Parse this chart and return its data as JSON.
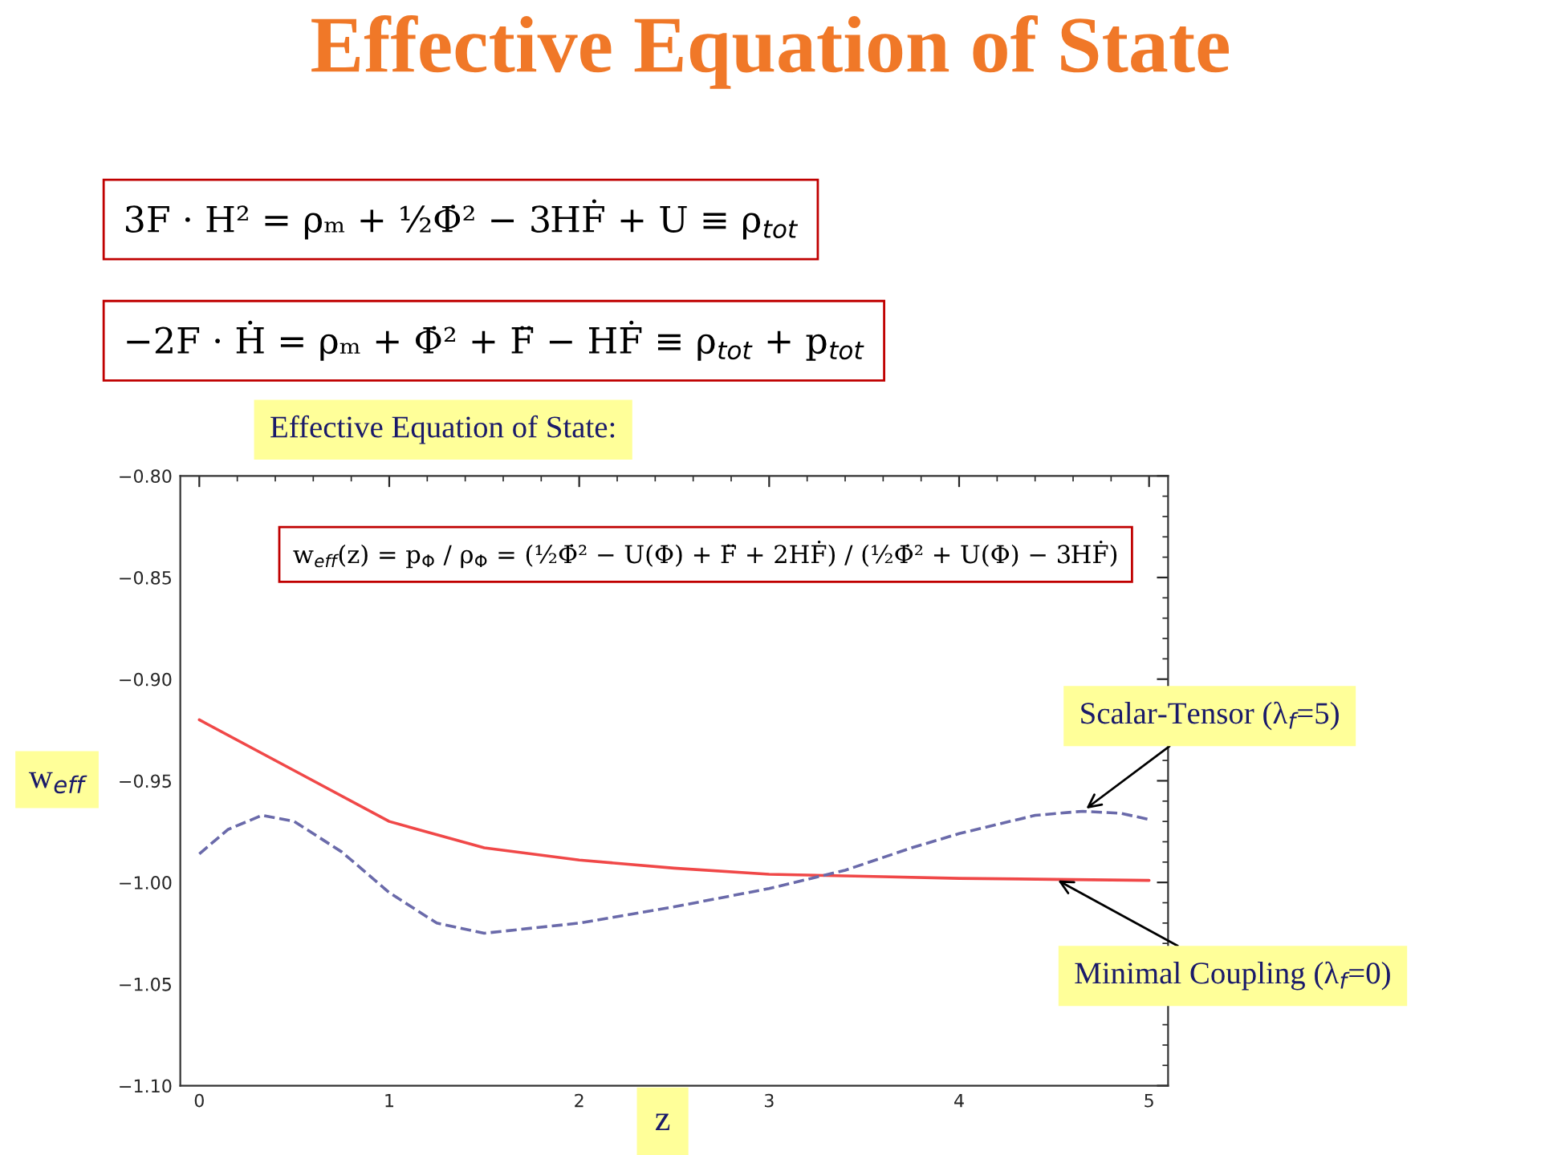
{
  "chart_data": {
    "type": "line",
    "title": "Effective Equation of State",
    "xlabel": "z",
    "ylabel": "w$_{eff}$",
    "x": [
      0,
      0.5,
      1,
      1.5,
      2,
      2.5,
      3,
      3.5,
      4,
      4.5,
      5
    ],
    "series": [
      {
        "color": "#f04848",
        "line_style": "solid",
        "values": [
          -0.92,
          -0.945,
          -0.97,
          -0.983,
          -0.989,
          -0.993,
          -0.996,
          -0.997,
          -0.998,
          -0.9985,
          -0.999
        ]
      },
      {
        "color": "#6a6aaa",
        "line_style": "dashed",
        "x": [
          0,
          0.15,
          0.33,
          0.5,
          0.75,
          1,
          1.25,
          1.5,
          2,
          2.5,
          3,
          3.4,
          3.75,
          4,
          4.4,
          4.65,
          4.85,
          5
        ],
        "values": [
          -0.986,
          -0.974,
          -0.967,
          -0.97,
          -0.985,
          -1.005,
          -1.02,
          -1.025,
          -1.02,
          -1.012,
          -1.003,
          -0.994,
          -0.983,
          -0.976,
          -0.967,
          -0.965,
          -0.966,
          -0.969
        ]
      }
    ],
    "xlim": [
      -0.1,
      5.1
    ],
    "xticks": [
      0,
      1,
      2,
      3,
      4,
      5
    ],
    "ylim": [
      -1.1,
      -0.8
    ],
    "yticks": [
      {
        "value": -1.1,
        "label": "−1.10"
      },
      {
        "value": -1.05,
        "label": "−1.05"
      },
      {
        "value": -1.0,
        "label": "−1.00"
      },
      {
        "value": -0.95,
        "label": "−0.95"
      },
      {
        "value": -0.9,
        "label": "−0.90"
      },
      {
        "value": -0.85,
        "label": "−0.85"
      },
      {
        "value": -0.8,
        "label": "−0.80"
      }
    ],
    "grid": false,
    "legend": false,
    "annotations": [
      "3F · H² = ρₘ + ½Φ̇² − 3HḞ + U ≡ ρ$_{tot}$",
      "−2F · Ḣ = ρₘ + Φ̇² + F̈ − HḞ ≡ ρ$_{tot}$ + p$_{tot}$",
      "Effective Equation of State:",
      "w$_{eff}$(z) = p$_{Φ}$ / ρ$_{Φ}$ = (½Φ̇² − U(Φ) + F̈ + 2HḞ) / (½Φ̇² + U(Φ) − 3HḞ)",
      {
        "text": "Scalar-Tensor (λ$_{f}$=5)",
        "x": 4.65,
        "y": -0.965
      },
      {
        "text": "Minimal Coupling (λ$_{f}$=0)",
        "x": 4.5,
        "y": -0.998
      }
    ]
  }
}
